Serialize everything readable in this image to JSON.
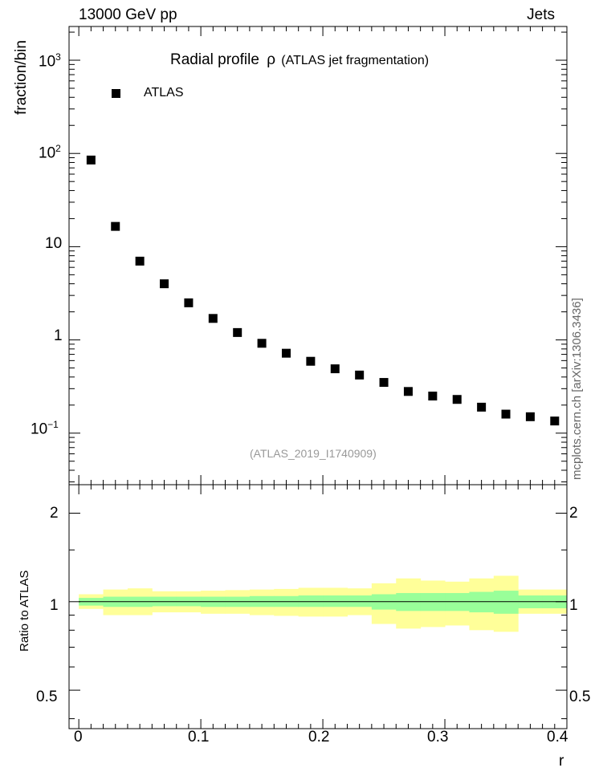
{
  "header": {
    "energy_label": "13000 GeV pp",
    "category_label": "Jets"
  },
  "side_label": "mcplots.cern.ch [arXiv:1306.3436]",
  "chart_data": [
    {
      "type": "scatter",
      "title": "Radial profile",
      "title_symbol": "ρ",
      "subtitle": "(ATLAS jet fragmentation)",
      "ylabel": "fraction/bin",
      "yscale": "log",
      "ylim": [
        0.028,
        2300
      ],
      "xlim": [
        -0.008,
        0.4
      ],
      "legend": {
        "placement": "top-left",
        "entries": [
          "ATLAS"
        ]
      },
      "analysis_label": "(ATLAS_2019_I1740909)",
      "y_tick_labels": [
        "10^-1",
        "1",
        "10",
        "10^2",
        "10^3"
      ],
      "series": [
        {
          "name": "ATLAS",
          "x": [
            0.01,
            0.03,
            0.05,
            0.07,
            0.09,
            0.11,
            0.13,
            0.15,
            0.17,
            0.19,
            0.21,
            0.23,
            0.25,
            0.27,
            0.29,
            0.31,
            0.33,
            0.35,
            0.37,
            0.39
          ],
          "y": [
            85,
            16.5,
            7.0,
            4.0,
            2.5,
            1.7,
            1.2,
            0.92,
            0.72,
            0.59,
            0.49,
            0.42,
            0.35,
            0.28,
            0.25,
            0.23,
            0.19,
            0.16,
            0.15,
            0.135
          ]
        }
      ]
    },
    {
      "type": "area",
      "ylabel": "Ratio to ATLAS",
      "xlabel": "r",
      "ylim": [
        0.37,
        2.5
      ],
      "xlim": [
        -0.008,
        0.4
      ],
      "x_tick_labels": [
        "0",
        "0.1",
        "0.2",
        "0.3",
        "0.4"
      ],
      "y_tick_labels": [
        "0.5",
        "1",
        "2"
      ],
      "bin_edges": [
        0,
        0.02,
        0.04,
        0.06,
        0.08,
        0.1,
        0.12,
        0.14,
        0.16,
        0.18,
        0.2,
        0.22,
        0.24,
        0.26,
        0.28,
        0.3,
        0.32,
        0.34,
        0.36,
        0.38,
        0.4
      ],
      "inner_band": {
        "color": "#99ff99",
        "lower": [
          0.97,
          0.96,
          0.96,
          0.965,
          0.965,
          0.96,
          0.96,
          0.96,
          0.96,
          0.96,
          0.96,
          0.96,
          0.94,
          0.93,
          0.93,
          0.93,
          0.92,
          0.91,
          0.95,
          0.95
        ],
        "upper": [
          1.03,
          1.04,
          1.04,
          1.04,
          1.04,
          1.04,
          1.04,
          1.045,
          1.045,
          1.05,
          1.05,
          1.05,
          1.06,
          1.07,
          1.07,
          1.07,
          1.08,
          1.09,
          1.05,
          1.05
        ]
      },
      "outer_band": {
        "color": "#ffff99",
        "lower": [
          0.945,
          0.9,
          0.9,
          0.92,
          0.92,
          0.91,
          0.91,
          0.9,
          0.895,
          0.89,
          0.89,
          0.9,
          0.84,
          0.81,
          0.82,
          0.83,
          0.8,
          0.79,
          0.91,
          0.91
        ],
        "upper": [
          1.06,
          1.1,
          1.11,
          1.085,
          1.085,
          1.09,
          1.095,
          1.1,
          1.105,
          1.115,
          1.115,
          1.11,
          1.155,
          1.2,
          1.18,
          1.17,
          1.2,
          1.225,
          1.1,
          1.1
        ]
      },
      "reference_line": 1
    }
  ]
}
